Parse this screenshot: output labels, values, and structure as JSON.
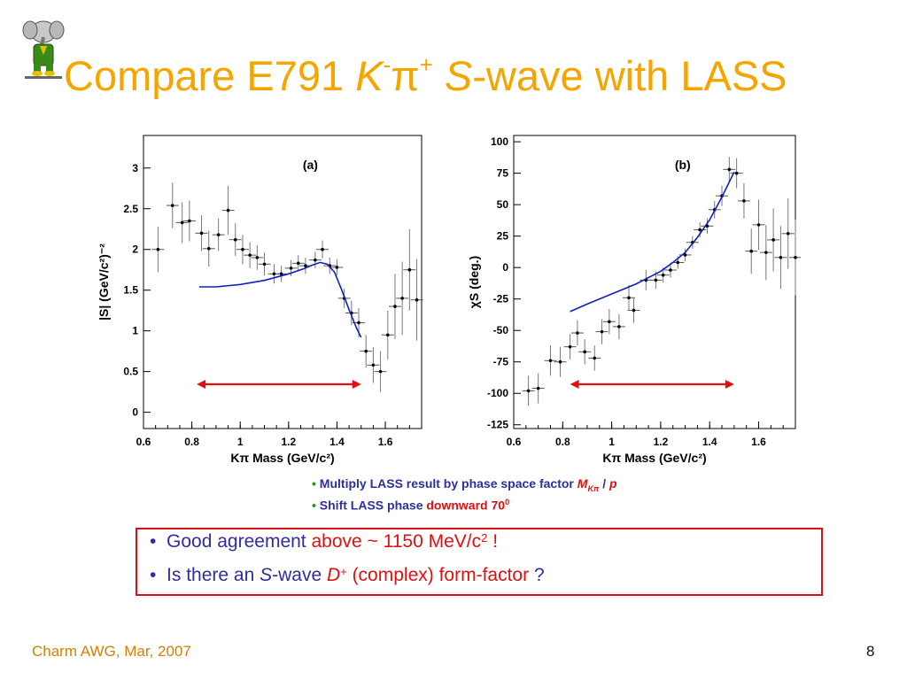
{
  "slide": {
    "title_prefix": "Compare E791 ",
    "title_k": "K",
    "title_k_sup": "-",
    "title_pi": "π",
    "title_pi_sup": "+",
    "title_s": "S",
    "title_suffix": "-wave with LASS",
    "logo_caption": "",
    "footer": "Charm AWG, Mar, 2007",
    "page_number": "8"
  },
  "notes": {
    "line1_prefix": "Multiply LASS result by phase space factor ",
    "line1_m": "M",
    "line1_sub": "Kπ",
    "line1_slash": " / ",
    "line1_p": "p",
    "line2_prefix": "Shift LASS phase ",
    "line2_red": "downward 70",
    "line2_sup": "0"
  },
  "box": {
    "line1_prefix": "Good agreement ",
    "line1_red": "above ~ 1150 MeV/c",
    "line1_sup": "2",
    "line1_end": " !",
    "line2_prefix": "Is there an ",
    "line2_s": "S",
    "line2_mid": "-wave ",
    "line2_d": "D",
    "line2_dsup": "+",
    "line2_red": " (complex) form-factor",
    "line2_end": " ?"
  },
  "colors": {
    "title": "#f5a500",
    "accent_red": "#e01010",
    "text_blue": "#2e2ea0",
    "fit_curve": "#1020c0"
  },
  "chart_data": [
    {
      "type": "scatter",
      "panel_label": "(a)",
      "xlabel": "Kπ Mass (GeV/c²)",
      "ylabel": "|S|  (GeV/c²)⁻²",
      "xlim": [
        0.6,
        1.75
      ],
      "ylim": [
        -0.2,
        3.4
      ],
      "xticks": [
        0.6,
        0.8,
        1,
        1.2,
        1.4,
        1.6
      ],
      "yticks": [
        0,
        0.5,
        1,
        1.5,
        2,
        2.5,
        3
      ],
      "points": [
        {
          "x": 0.66,
          "y": 2.0,
          "e": 0.28
        },
        {
          "x": 0.72,
          "y": 2.54,
          "e": 0.28
        },
        {
          "x": 0.76,
          "y": 2.33,
          "e": 0.25
        },
        {
          "x": 0.79,
          "y": 2.35,
          "e": 0.25
        },
        {
          "x": 0.84,
          "y": 2.2,
          "e": 0.22
        },
        {
          "x": 0.87,
          "y": 2.01,
          "e": 0.22
        },
        {
          "x": 0.91,
          "y": 2.18,
          "e": 0.2
        },
        {
          "x": 0.95,
          "y": 2.48,
          "e": 0.3
        },
        {
          "x": 0.98,
          "y": 2.12,
          "e": 0.2
        },
        {
          "x": 1.01,
          "y": 2.0,
          "e": 0.18
        },
        {
          "x": 1.04,
          "y": 1.93,
          "e": 0.16
        },
        {
          "x": 1.07,
          "y": 1.9,
          "e": 0.15
        },
        {
          "x": 1.1,
          "y": 1.82,
          "e": 0.14
        },
        {
          "x": 1.14,
          "y": 1.7,
          "e": 0.12
        },
        {
          "x": 1.17,
          "y": 1.7,
          "e": 0.1
        },
        {
          "x": 1.21,
          "y": 1.77,
          "e": 0.1
        },
        {
          "x": 1.24,
          "y": 1.83,
          "e": 0.1
        },
        {
          "x": 1.27,
          "y": 1.8,
          "e": 0.1
        },
        {
          "x": 1.31,
          "y": 1.87,
          "e": 0.1
        },
        {
          "x": 1.34,
          "y": 2.0,
          "e": 0.11
        },
        {
          "x": 1.37,
          "y": 1.8,
          "e": 0.1
        },
        {
          "x": 1.4,
          "y": 1.78,
          "e": 0.1
        },
        {
          "x": 1.43,
          "y": 1.4,
          "e": 0.12
        },
        {
          "x": 1.46,
          "y": 1.22,
          "e": 0.15
        },
        {
          "x": 1.49,
          "y": 1.1,
          "e": 0.18
        },
        {
          "x": 1.52,
          "y": 0.75,
          "e": 0.2
        },
        {
          "x": 1.55,
          "y": 0.58,
          "e": 0.22
        },
        {
          "x": 1.58,
          "y": 0.5,
          "e": 0.25
        },
        {
          "x": 1.61,
          "y": 0.95,
          "e": 0.3
        },
        {
          "x": 1.64,
          "y": 1.3,
          "e": 0.4
        },
        {
          "x": 1.67,
          "y": 1.4,
          "e": 0.45
        },
        {
          "x": 1.7,
          "y": 1.75,
          "e": 0.5
        },
        {
          "x": 1.73,
          "y": 1.38,
          "e": 0.5
        }
      ],
      "fit_curve": [
        [
          0.83,
          1.54
        ],
        [
          0.9,
          1.54
        ],
        [
          1.0,
          1.57
        ],
        [
          1.1,
          1.62
        ],
        [
          1.2,
          1.7
        ],
        [
          1.26,
          1.76
        ],
        [
          1.3,
          1.81
        ],
        [
          1.33,
          1.84
        ],
        [
          1.36,
          1.82
        ],
        [
          1.39,
          1.72
        ],
        [
          1.42,
          1.5
        ],
        [
          1.45,
          1.26
        ],
        [
          1.48,
          1.04
        ],
        [
          1.5,
          0.92
        ]
      ],
      "range_arrow": [
        0.82,
        1.5
      ]
    },
    {
      "type": "scatter",
      "panel_label": "(b)",
      "xlabel": "Kπ Mass (GeV/c²)",
      "ylabel": "χS (deg.)",
      "xlim": [
        0.6,
        1.75
      ],
      "ylim": [
        -128,
        105
      ],
      "xticks": [
        0.6,
        0.8,
        1,
        1.2,
        1.4,
        1.6
      ],
      "yticks": [
        100,
        75,
        50,
        25,
        0,
        -25,
        -50,
        -75,
        -100,
        -125
      ],
      "points": [
        {
          "x": 0.66,
          "y": -98,
          "e": 12
        },
        {
          "x": 0.7,
          "y": -96,
          "e": 12
        },
        {
          "x": 0.75,
          "y": -74,
          "e": 12
        },
        {
          "x": 0.79,
          "y": -75,
          "e": 12
        },
        {
          "x": 0.83,
          "y": -63,
          "e": 10
        },
        {
          "x": 0.86,
          "y": -52,
          "e": 10
        },
        {
          "x": 0.89,
          "y": -67,
          "e": 10
        },
        {
          "x": 0.93,
          "y": -72,
          "e": 10
        },
        {
          "x": 0.96,
          "y": -51,
          "e": 10
        },
        {
          "x": 0.99,
          "y": -43,
          "e": 10
        },
        {
          "x": 1.03,
          "y": -47,
          "e": 10
        },
        {
          "x": 1.07,
          "y": -24,
          "e": 10
        },
        {
          "x": 1.09,
          "y": -34,
          "e": 10
        },
        {
          "x": 1.14,
          "y": -10,
          "e": 8
        },
        {
          "x": 1.18,
          "y": -10,
          "e": 7
        },
        {
          "x": 1.21,
          "y": -6,
          "e": 6
        },
        {
          "x": 1.24,
          "y": -2,
          "e": 6
        },
        {
          "x": 1.27,
          "y": 4,
          "e": 5
        },
        {
          "x": 1.3,
          "y": 10,
          "e": 5
        },
        {
          "x": 1.33,
          "y": 20,
          "e": 5
        },
        {
          "x": 1.36,
          "y": 30,
          "e": 6
        },
        {
          "x": 1.39,
          "y": 33,
          "e": 6
        },
        {
          "x": 1.42,
          "y": 46,
          "e": 7
        },
        {
          "x": 1.45,
          "y": 57,
          "e": 8
        },
        {
          "x": 1.48,
          "y": 78,
          "e": 10
        },
        {
          "x": 1.51,
          "y": 75,
          "e": 12
        },
        {
          "x": 1.54,
          "y": 53,
          "e": 14
        },
        {
          "x": 1.57,
          "y": 13,
          "e": 18
        },
        {
          "x": 1.6,
          "y": 34,
          "e": 20
        },
        {
          "x": 1.63,
          "y": 12,
          "e": 22
        },
        {
          "x": 1.66,
          "y": 22,
          "e": 25
        },
        {
          "x": 1.69,
          "y": 8,
          "e": 25
        },
        {
          "x": 1.72,
          "y": 27,
          "e": 28
        },
        {
          "x": 1.75,
          "y": 8,
          "e": 30
        }
      ],
      "fit_curve": [
        [
          0.83,
          -35
        ],
        [
          0.9,
          -29
        ],
        [
          1.0,
          -21
        ],
        [
          1.1,
          -13
        ],
        [
          1.2,
          -3
        ],
        [
          1.25,
          4
        ],
        [
          1.3,
          12
        ],
        [
          1.35,
          24
        ],
        [
          1.4,
          38
        ],
        [
          1.45,
          56
        ],
        [
          1.5,
          76
        ]
      ],
      "range_arrow": [
        0.83,
        1.5
      ]
    }
  ]
}
